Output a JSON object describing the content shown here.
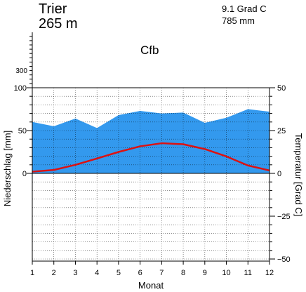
{
  "chart_data": {
    "type": "area",
    "station": "Trier",
    "elevation": "265 m",
    "mean_temperature": "9.1 Grad C",
    "annual_precipitation": "785 mm",
    "climate_class": "Cfb",
    "xlabel": "Monat",
    "ylabel_left": "Niederschlag [mm]",
    "ylabel_right": "Temperatur [Grad C]",
    "x": [
      1,
      2,
      3,
      4,
      5,
      6,
      7,
      8,
      9,
      10,
      11,
      12
    ],
    "x_tick_labels": [
      "1",
      "2",
      "3",
      "4",
      "5",
      "6",
      "7",
      "8",
      "9",
      "10",
      "11",
      "12"
    ],
    "left_tick_labels": [
      "100",
      "50",
      "0"
    ],
    "left_upper_tick_label": "300",
    "right_tick_labels": [
      "50",
      "25",
      "0",
      "−25",
      "−50"
    ],
    "precip_ylim": [
      0,
      100
    ],
    "temp_ylim": [
      -50,
      50
    ],
    "grid": true,
    "series": [
      {
        "name": "Niederschlag",
        "axis": "left",
        "unit": "mm",
        "color": "#3399ee",
        "values": [
          60,
          55,
          64,
          53,
          68,
          73,
          70,
          71,
          59,
          65,
          75,
          72
        ]
      },
      {
        "name": "Temperatur",
        "axis": "right",
        "unit": "Grad C",
        "color": "#dd1111",
        "values": [
          1.0,
          2.0,
          5.0,
          8.7,
          12.5,
          15.8,
          17.6,
          17.0,
          14.2,
          9.9,
          4.6,
          1.7
        ]
      }
    ]
  }
}
